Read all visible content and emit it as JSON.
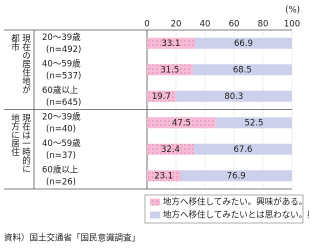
{
  "chart_data": {
    "type": "stacked_barh",
    "unit_label": "(%)",
    "groups": [
      {
        "label_lines": [
          "現在の居住地が",
          "都市"
        ],
        "categories": [
          {
            "name": "20～39歳",
            "n": "(n=492)"
          },
          {
            "name": "40～59歳",
            "n": "(n=537)"
          },
          {
            "name": "60歳以上",
            "n": "(n=645)"
          }
        ]
      },
      {
        "label_lines": [
          "現在は一時的に",
          "地方に居住"
        ],
        "categories": [
          {
            "name": "20～39歳",
            "n": "(n=40)"
          },
          {
            "name": "40～59歳",
            "n": "(n=37)"
          },
          {
            "name": "60歳以上",
            "n": "(n=26)"
          }
        ]
      }
    ],
    "series": [
      {
        "name": "地方へ移住してみたい。興味がある。",
        "color": "#f6bcd5",
        "pattern": "dots",
        "values": [
          33.1,
          31.5,
          19.7,
          47.5,
          32.4,
          23.1
        ]
      },
      {
        "name": "地方へ移住してみたいとは思わない。興味がない。",
        "color": "#cdd0ea",
        "pattern": "none",
        "values": [
          66.9,
          68.5,
          80.3,
          52.5,
          67.6,
          76.9
        ]
      }
    ],
    "xlim": [
      0,
      100
    ],
    "xticks": [
      0,
      20,
      40,
      60,
      80,
      100
    ],
    "grid": true,
    "source": "資料）国土交通省「国民意識調査」"
  }
}
